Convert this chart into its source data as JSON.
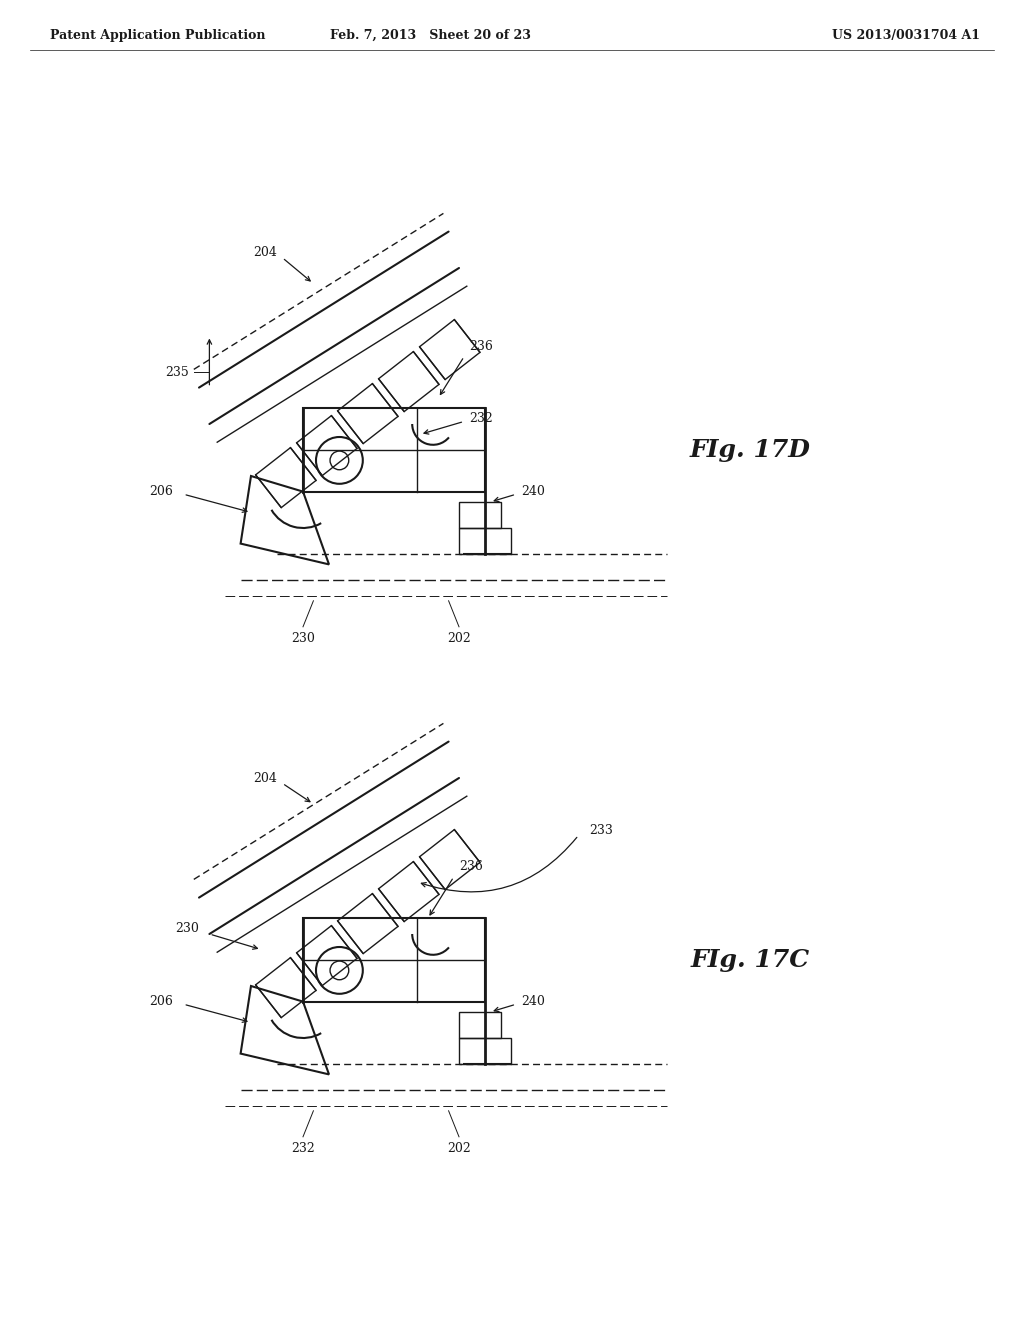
{
  "background_color": "#ffffff",
  "page_width": 10.24,
  "page_height": 13.2,
  "header_text_left": "Patent Application Publication",
  "header_text_mid": "Feb. 7, 2013   Sheet 20 of 23",
  "header_text_right": "US 2013/0031704 A1",
  "fig_top_label": "FIg. 17D",
  "fig_bot_label": "FIg. 17C",
  "line_color": "#1a1a1a",
  "label_fontsize": 9,
  "fig_label_fontsize": 18
}
